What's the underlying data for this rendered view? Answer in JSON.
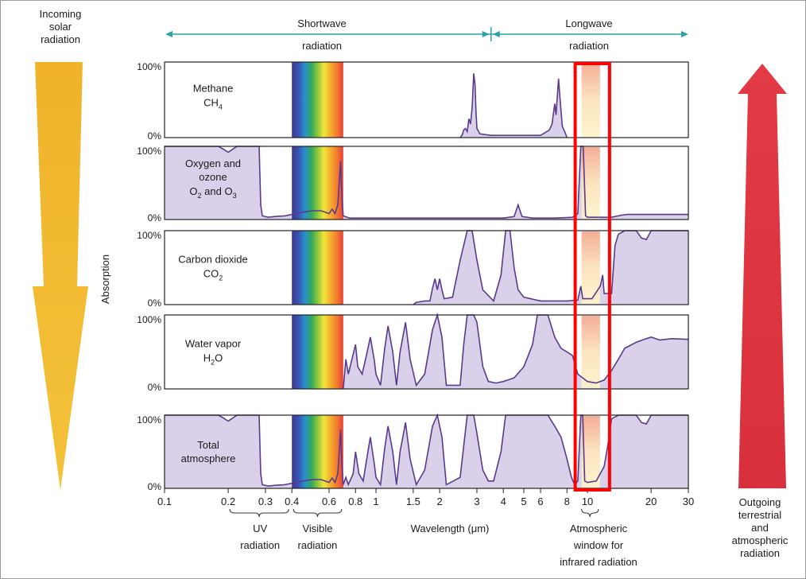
{
  "chart_data": {
    "type": "area",
    "title": "",
    "xlabel": "Wavelength (μm)",
    "ylabel": "Absorption",
    "x_scale": "log",
    "xlim": [
      0.1,
      30
    ],
    "ylim": [
      0,
      100
    ],
    "x_ticks": [
      0.1,
      0.2,
      0.3,
      0.4,
      0.6,
      0.8,
      1,
      1.5,
      2,
      3,
      4,
      5,
      6,
      8,
      10,
      20,
      30
    ],
    "x_tick_labels": [
      "0.1",
      "0.2",
      "0.3",
      "0.4",
      "0.6",
      "0.8",
      "1",
      "1.5",
      "2",
      "3",
      "4",
      "5",
      "6",
      "8",
      "10",
      "20",
      "30"
    ],
    "y_tick_labels": [
      "100%",
      "0%"
    ],
    "shortwave_label": "Shortwave radiation",
    "longwave_label": "Longwave radiation",
    "shortwave_range": [
      0.2,
      3.5
    ],
    "longwave_range": [
      3.5,
      30
    ],
    "incoming_label": "Incoming solar radiation",
    "outgoing_label": "Outgoing terrestrial and atmospheric radiation",
    "uv_label": "UV radiation",
    "uv_range": [
      0.2,
      0.4
    ],
    "visible_label": "Visible radiation",
    "visible_range": [
      0.4,
      0.7
    ],
    "window_label": "Atmospheric window for infrared radiation",
    "window_range": [
      8.9,
      12.5
    ],
    "colors": {
      "fill": "#d9d1ea",
      "line": "#5a3a8a",
      "arrow_teal": "#2aa3a8",
      "incoming_arrow": "#f0b32a",
      "outgoing_arrow": "#dd3040",
      "highlight": "#ff0000"
    },
    "series": [
      {
        "name": "Methane",
        "formula": "CH",
        "formula_sub": "4",
        "points": [
          [
            2.5,
            0
          ],
          [
            2.55,
            3
          ],
          [
            2.6,
            10
          ],
          [
            2.65,
            12
          ],
          [
            2.7,
            8
          ],
          [
            2.75,
            25
          ],
          [
            2.8,
            18
          ],
          [
            2.85,
            40
          ],
          [
            2.9,
            85
          ],
          [
            2.94,
            70
          ],
          [
            2.97,
            35
          ],
          [
            3.0,
            12
          ],
          [
            3.1,
            5
          ],
          [
            3.5,
            3
          ],
          [
            5,
            3
          ],
          [
            6,
            3
          ],
          [
            6.6,
            10
          ],
          [
            6.8,
            18
          ],
          [
            7.0,
            45
          ],
          [
            7.1,
            30
          ],
          [
            7.3,
            78
          ],
          [
            7.4,
            55
          ],
          [
            7.6,
            15
          ],
          [
            7.8,
            8
          ],
          [
            8,
            0
          ]
        ]
      },
      {
        "name": "Oxygen and ozone",
        "formula_lines": [
          "O",
          "2",
          " and O",
          "3"
        ],
        "points": [
          [
            0.1,
            100
          ],
          [
            0.18,
            100
          ],
          [
            0.19,
            96
          ],
          [
            0.2,
            92
          ],
          [
            0.21,
            96
          ],
          [
            0.22,
            100
          ],
          [
            0.28,
            100
          ],
          [
            0.285,
            20
          ],
          [
            0.29,
            5
          ],
          [
            0.31,
            3
          ],
          [
            0.33,
            4
          ],
          [
            0.37,
            5
          ],
          [
            0.4,
            7
          ],
          [
            0.45,
            10
          ],
          [
            0.5,
            12
          ],
          [
            0.55,
            12
          ],
          [
            0.6,
            8
          ],
          [
            0.62,
            14
          ],
          [
            0.64,
            8
          ],
          [
            0.66,
            20
          ],
          [
            0.68,
            80
          ],
          [
            0.69,
            30
          ],
          [
            0.7,
            5
          ],
          [
            0.75,
            2
          ],
          [
            1,
            2
          ],
          [
            2,
            2
          ],
          [
            3,
            2
          ],
          [
            4,
            2
          ],
          [
            4.5,
            4
          ],
          [
            4.7,
            20
          ],
          [
            4.9,
            4
          ],
          [
            5.5,
            2
          ],
          [
            7,
            2
          ],
          [
            8.5,
            3
          ],
          [
            9.0,
            8
          ],
          [
            9.3,
            100
          ],
          [
            9.55,
            100
          ],
          [
            9.8,
            5
          ],
          [
            10,
            3
          ],
          [
            12,
            3
          ],
          [
            13,
            3
          ],
          [
            14.5,
            6
          ],
          [
            15.5,
            7
          ],
          [
            20,
            7
          ],
          [
            30,
            7
          ]
        ]
      },
      {
        "name": "Carbon dioxide",
        "formula": "CO",
        "formula_sub": "2",
        "points": [
          [
            1.5,
            0
          ],
          [
            1.55,
            3
          ],
          [
            1.7,
            5
          ],
          [
            1.8,
            5
          ],
          [
            1.85,
            22
          ],
          [
            1.9,
            35
          ],
          [
            1.95,
            20
          ],
          [
            2.0,
            35
          ],
          [
            2.05,
            20
          ],
          [
            2.1,
            8
          ],
          [
            2.3,
            10
          ],
          [
            2.5,
            60
          ],
          [
            2.7,
            100
          ],
          [
            2.85,
            100
          ],
          [
            3.0,
            60
          ],
          [
            3.2,
            20
          ],
          [
            3.6,
            5
          ],
          [
            3.9,
            40
          ],
          [
            4.1,
            100
          ],
          [
            4.3,
            100
          ],
          [
            4.5,
            50
          ],
          [
            4.7,
            20
          ],
          [
            5,
            10
          ],
          [
            6,
            5
          ],
          [
            8,
            5
          ],
          [
            9.0,
            6
          ],
          [
            9.3,
            25
          ],
          [
            9.5,
            8
          ],
          [
            10.5,
            8
          ],
          [
            11.5,
            25
          ],
          [
            11.8,
            40
          ],
          [
            12,
            15
          ],
          [
            13,
            15
          ],
          [
            13.5,
            80
          ],
          [
            14,
            95
          ],
          [
            15,
            100
          ],
          [
            17,
            100
          ],
          [
            18,
            90
          ],
          [
            19,
            88
          ],
          [
            20,
            100
          ],
          [
            30,
            100
          ]
        ]
      },
      {
        "name": "Water vapor",
        "formula": "H",
        "formula_sub": "2",
        "formula_tail": "O",
        "points": [
          [
            0.7,
            0
          ],
          [
            0.71,
            20
          ],
          [
            0.72,
            40
          ],
          [
            0.74,
            20
          ],
          [
            0.8,
            60
          ],
          [
            0.82,
            30
          ],
          [
            0.86,
            20
          ],
          [
            0.9,
            45
          ],
          [
            0.94,
            70
          ],
          [
            0.98,
            40
          ],
          [
            1.0,
            20
          ],
          [
            1.05,
            5
          ],
          [
            1.1,
            55
          ],
          [
            1.14,
            85
          ],
          [
            1.2,
            50
          ],
          [
            1.25,
            5
          ],
          [
            1.3,
            50
          ],
          [
            1.38,
            90
          ],
          [
            1.45,
            40
          ],
          [
            1.55,
            5
          ],
          [
            1.7,
            20
          ],
          [
            1.85,
            80
          ],
          [
            1.95,
            100
          ],
          [
            2.05,
            70
          ],
          [
            2.15,
            5
          ],
          [
            2.5,
            5
          ],
          [
            2.6,
            60
          ],
          [
            2.7,
            100
          ],
          [
            2.9,
            100
          ],
          [
            3.0,
            90
          ],
          [
            3.2,
            30
          ],
          [
            3.4,
            10
          ],
          [
            3.7,
            8
          ],
          [
            4.0,
            10
          ],
          [
            4.5,
            15
          ],
          [
            5,
            30
          ],
          [
            5.5,
            60
          ],
          [
            5.8,
            100
          ],
          [
            6.5,
            100
          ],
          [
            7,
            70
          ],
          [
            7.5,
            55
          ],
          [
            8,
            50
          ],
          [
            8.5,
            45
          ],
          [
            9,
            20
          ],
          [
            10,
            10
          ],
          [
            11,
            8
          ],
          [
            12,
            12
          ],
          [
            13,
            25
          ],
          [
            14,
            40
          ],
          [
            15,
            55
          ],
          [
            17,
            63
          ],
          [
            19,
            68
          ],
          [
            20,
            70
          ],
          [
            22,
            66
          ],
          [
            25,
            68
          ],
          [
            30,
            67
          ]
        ]
      },
      {
        "name": "Total atmosphere",
        "points": [
          [
            0.1,
            100
          ],
          [
            0.18,
            100
          ],
          [
            0.19,
            96
          ],
          [
            0.2,
            92
          ],
          [
            0.21,
            96
          ],
          [
            0.22,
            100
          ],
          [
            0.28,
            100
          ],
          [
            0.285,
            20
          ],
          [
            0.29,
            5
          ],
          [
            0.31,
            3
          ],
          [
            0.33,
            4
          ],
          [
            0.37,
            5
          ],
          [
            0.4,
            7
          ],
          [
            0.45,
            10
          ],
          [
            0.5,
            12
          ],
          [
            0.55,
            12
          ],
          [
            0.6,
            8
          ],
          [
            0.62,
            14
          ],
          [
            0.64,
            8
          ],
          [
            0.66,
            20
          ],
          [
            0.68,
            80
          ],
          [
            0.69,
            30
          ],
          [
            0.7,
            5
          ],
          [
            0.72,
            15
          ],
          [
            0.74,
            5
          ],
          [
            0.78,
            20
          ],
          [
            0.8,
            50
          ],
          [
            0.83,
            20
          ],
          [
            0.87,
            10
          ],
          [
            0.91,
            45
          ],
          [
            0.94,
            70
          ],
          [
            0.98,
            35
          ],
          [
            1.0,
            15
          ],
          [
            1.05,
            5
          ],
          [
            1.1,
            55
          ],
          [
            1.14,
            85
          ],
          [
            1.2,
            50
          ],
          [
            1.25,
            5
          ],
          [
            1.3,
            50
          ],
          [
            1.38,
            90
          ],
          [
            1.45,
            40
          ],
          [
            1.55,
            5
          ],
          [
            1.7,
            25
          ],
          [
            1.85,
            85
          ],
          [
            1.95,
            100
          ],
          [
            2.05,
            70
          ],
          [
            2.15,
            5
          ],
          [
            2.5,
            15
          ],
          [
            2.7,
            100
          ],
          [
            2.9,
            100
          ],
          [
            3.0,
            75
          ],
          [
            3.2,
            25
          ],
          [
            3.4,
            10
          ],
          [
            3.6,
            10
          ],
          [
            3.9,
            50
          ],
          [
            4.1,
            100
          ],
          [
            4.6,
            100
          ],
          [
            5,
            100
          ],
          [
            6,
            100
          ],
          [
            6.5,
            100
          ],
          [
            7,
            85
          ],
          [
            7.5,
            70
          ],
          [
            8,
            40
          ],
          [
            8.4,
            15
          ],
          [
            8.7,
            5
          ],
          [
            9.0,
            10
          ],
          [
            9.3,
            100
          ],
          [
            9.5,
            100
          ],
          [
            9.7,
            10
          ],
          [
            10,
            8
          ],
          [
            11,
            10
          ],
          [
            12,
            30
          ],
          [
            12.5,
            60
          ],
          [
            13,
            95
          ],
          [
            14,
            100
          ],
          [
            17,
            100
          ],
          [
            18,
            90
          ],
          [
            19,
            88
          ],
          [
            20,
            100
          ],
          [
            30,
            100
          ]
        ]
      }
    ]
  }
}
